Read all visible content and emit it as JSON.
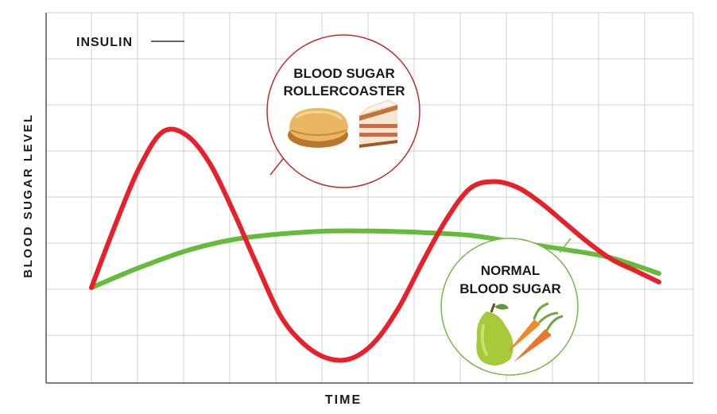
{
  "chart_data": {
    "type": "line",
    "title": "",
    "xlabel": "TIME",
    "ylabel": "BLOOD SUGAR LEVEL",
    "grid": true,
    "series": [
      {
        "name": "INSULIN",
        "color": "#e8202a",
        "callout_lines": [
          "BLOOD SUGAR",
          "ROLLERCOASTER"
        ],
        "callout_icons": [
          "bread-roll-icon",
          "cake-slice-icon"
        ],
        "x": [
          0,
          1,
          2,
          3,
          4,
          5,
          6,
          7,
          8,
          9,
          10,
          11,
          12,
          13,
          14,
          15,
          16,
          17,
          18,
          19,
          20,
          21,
          22,
          23,
          24
        ],
        "y": [
          2.0,
          4.2,
          6.2,
          7.5,
          7.4,
          6.4,
          4.7,
          2.8,
          1.0,
          0.0,
          -0.5,
          -0.5,
          0.1,
          1.3,
          2.9,
          4.4,
          5.5,
          5.75,
          5.55,
          5.0,
          4.3,
          3.6,
          3.0,
          2.6,
          2.2
        ]
      },
      {
        "name": "NORMAL BLOOD SUGAR",
        "color": "#66bb3b",
        "callout_lines": [
          "NORMAL",
          "BLOOD SUGAR"
        ],
        "callout_icons": [
          "pear-icon",
          "carrots-icon"
        ],
        "x": [
          0,
          2,
          4,
          6,
          8,
          10,
          12,
          14,
          16,
          18,
          20,
          22,
          24
        ],
        "y": [
          2.0,
          2.7,
          3.3,
          3.7,
          3.9,
          4.0,
          4.0,
          3.95,
          3.85,
          3.6,
          3.35,
          3.05,
          2.5
        ]
      }
    ],
    "annotations": [
      {
        "text": "INSULIN"
      }
    ]
  },
  "colors": {
    "grid": "#d0d0d0",
    "axis": "#555555",
    "red_circle": "#c62a2a",
    "green_circle": "#74b94d"
  }
}
